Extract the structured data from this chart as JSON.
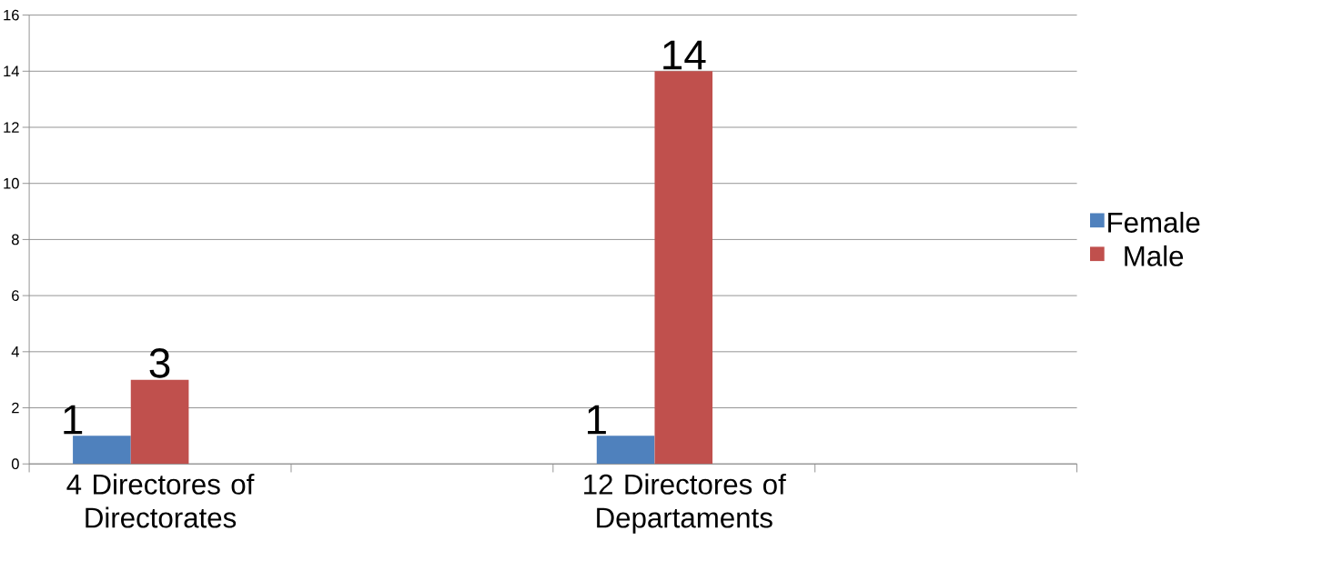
{
  "chart_data": {
    "type": "bar",
    "categories": [
      "4 Directores of Directorates",
      null,
      "12 Directores of Departaments",
      null
    ],
    "series": [
      {
        "name": "Female",
        "color": "#4f81bd",
        "values": [
          1,
          null,
          1,
          null
        ]
      },
      {
        "name": "Male",
        "color": "#c0504d",
        "values": [
          3,
          null,
          14,
          null
        ]
      }
    ],
    "ylim": [
      0,
      16
    ],
    "yticks": [
      0,
      2,
      4,
      6,
      8,
      10,
      12,
      14,
      16
    ],
    "grid": "y",
    "legend": "right",
    "data_labels": true
  }
}
